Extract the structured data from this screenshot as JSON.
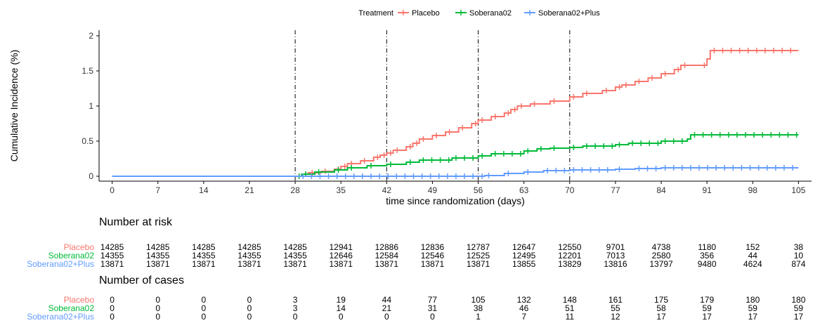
{
  "chart_data": {
    "type": "line",
    "title": "",
    "xlabel": "time since randomization (days)",
    "ylabel": "Cumulative Incidence (%)",
    "xlim": [
      -2,
      107
    ],
    "ylim": [
      -0.07,
      2.08
    ],
    "x_ticks": [
      0,
      7,
      14,
      21,
      28,
      35,
      42,
      49,
      56,
      63,
      70,
      77,
      84,
      91,
      98,
      105
    ],
    "y_ticks": [
      0,
      0.5,
      1,
      1.5,
      2
    ],
    "y_tick_labels": [
      "0",
      "0.5",
      "1",
      "1.5",
      "2"
    ],
    "vertical_lines": [
      28,
      42,
      56,
      70
    ],
    "grid": false,
    "legend": {
      "title": "Treatment",
      "placement": "top-center"
    },
    "series": [
      {
        "name": "Placebo",
        "color": "#F8766D",
        "points": [
          [
            0,
            0
          ],
          [
            28,
            0
          ],
          [
            29,
            0.03
          ],
          [
            30,
            0.05
          ],
          [
            32,
            0.07
          ],
          [
            34,
            0.1
          ],
          [
            35,
            0.14
          ],
          [
            36,
            0.18
          ],
          [
            38,
            0.22
          ],
          [
            40,
            0.27
          ],
          [
            41,
            0.3
          ],
          [
            42,
            0.33
          ],
          [
            43,
            0.37
          ],
          [
            45,
            0.42
          ],
          [
            46,
            0.47
          ],
          [
            47,
            0.53
          ],
          [
            49,
            0.58
          ],
          [
            51,
            0.63
          ],
          [
            53,
            0.69
          ],
          [
            55,
            0.75
          ],
          [
            56,
            0.8
          ],
          [
            58,
            0.85
          ],
          [
            60,
            0.9
          ],
          [
            61,
            0.95
          ],
          [
            62,
            1.0
          ],
          [
            64,
            1.03
          ],
          [
            67,
            1.07
          ],
          [
            70,
            1.13
          ],
          [
            72,
            1.18
          ],
          [
            75,
            1.22
          ],
          [
            77,
            1.27
          ],
          [
            78,
            1.3
          ],
          [
            80,
            1.35
          ],
          [
            82,
            1.4
          ],
          [
            84,
            1.46
          ],
          [
            86,
            1.52
          ],
          [
            87,
            1.58
          ],
          [
            90,
            1.58
          ],
          [
            91,
            1.67
          ],
          [
            91.5,
            1.79
          ],
          [
            105,
            1.79
          ]
        ]
      },
      {
        "name": "Soberana02",
        "color": "#00BA38",
        "points": [
          [
            0,
            0
          ],
          [
            28,
            0
          ],
          [
            29,
            0.03
          ],
          [
            31,
            0.06
          ],
          [
            34,
            0.09
          ],
          [
            36,
            0.12
          ],
          [
            39,
            0.15
          ],
          [
            42,
            0.17
          ],
          [
            45,
            0.2
          ],
          [
            47,
            0.23
          ],
          [
            52,
            0.26
          ],
          [
            56,
            0.29
          ],
          [
            58,
            0.32
          ],
          [
            63,
            0.36
          ],
          [
            65,
            0.39
          ],
          [
            67,
            0.4
          ],
          [
            70,
            0.41
          ],
          [
            72,
            0.43
          ],
          [
            77,
            0.45
          ],
          [
            79,
            0.47
          ],
          [
            84,
            0.5
          ],
          [
            88,
            0.53
          ],
          [
            88.5,
            0.59
          ],
          [
            105,
            0.59
          ]
        ]
      },
      {
        "name": "Soberana02+Plus",
        "color": "#619CFF",
        "points": [
          [
            0,
            0
          ],
          [
            56,
            0
          ],
          [
            57,
            0.01
          ],
          [
            60,
            0.04
          ],
          [
            63,
            0.06
          ],
          [
            66,
            0.08
          ],
          [
            70,
            0.09
          ],
          [
            77,
            0.1
          ],
          [
            80,
            0.11
          ],
          [
            84,
            0.12
          ],
          [
            105,
            0.12
          ]
        ]
      }
    ],
    "risk_table": {
      "title": "Number at risk",
      "rows": [
        {
          "name": "Placebo",
          "color": "#F8766D",
          "values": [
            "14285",
            "14285",
            "14285",
            "14285",
            "14285",
            "12941",
            "12886",
            "12836",
            "12787",
            "12647",
            "12550",
            "9701",
            "4738",
            "1180",
            "152",
            "38"
          ]
        },
        {
          "name": "Soberana02",
          "color": "#00BA38",
          "values": [
            "14355",
            "14355",
            "14355",
            "14355",
            "14355",
            "12646",
            "12584",
            "12546",
            "12525",
            "12495",
            "12201",
            "7013",
            "2580",
            "356",
            "44",
            "10"
          ]
        },
        {
          "name": "Soberana02+Plus",
          "color": "#619CFF",
          "values": [
            "13871",
            "13871",
            "13871",
            "13871",
            "13871",
            "13871",
            "13871",
            "13871",
            "13871",
            "13855",
            "13829",
            "13816",
            "13797",
            "9480",
            "4624",
            "874"
          ]
        }
      ]
    },
    "cases_table": {
      "title": "Number of cases",
      "rows": [
        {
          "name": "Placebo",
          "color": "#F8766D",
          "values": [
            "0",
            "0",
            "0",
            "0",
            "3",
            "19",
            "44",
            "77",
            "105",
            "132",
            "148",
            "161",
            "175",
            "179",
            "180",
            "180"
          ]
        },
        {
          "name": "Soberana02",
          "color": "#00BA38",
          "values": [
            "0",
            "0",
            "0",
            "0",
            "3",
            "14",
            "21",
            "31",
            "38",
            "46",
            "51",
            "55",
            "58",
            "59",
            "59",
            "59"
          ]
        },
        {
          "name": "Soberana02+Plus",
          "color": "#619CFF",
          "values": [
            "0",
            "0",
            "0",
            "0",
            "0",
            "0",
            "0",
            "0",
            "1",
            "7",
            "11",
            "12",
            "17",
            "17",
            "17",
            "17"
          ]
        }
      ]
    }
  }
}
